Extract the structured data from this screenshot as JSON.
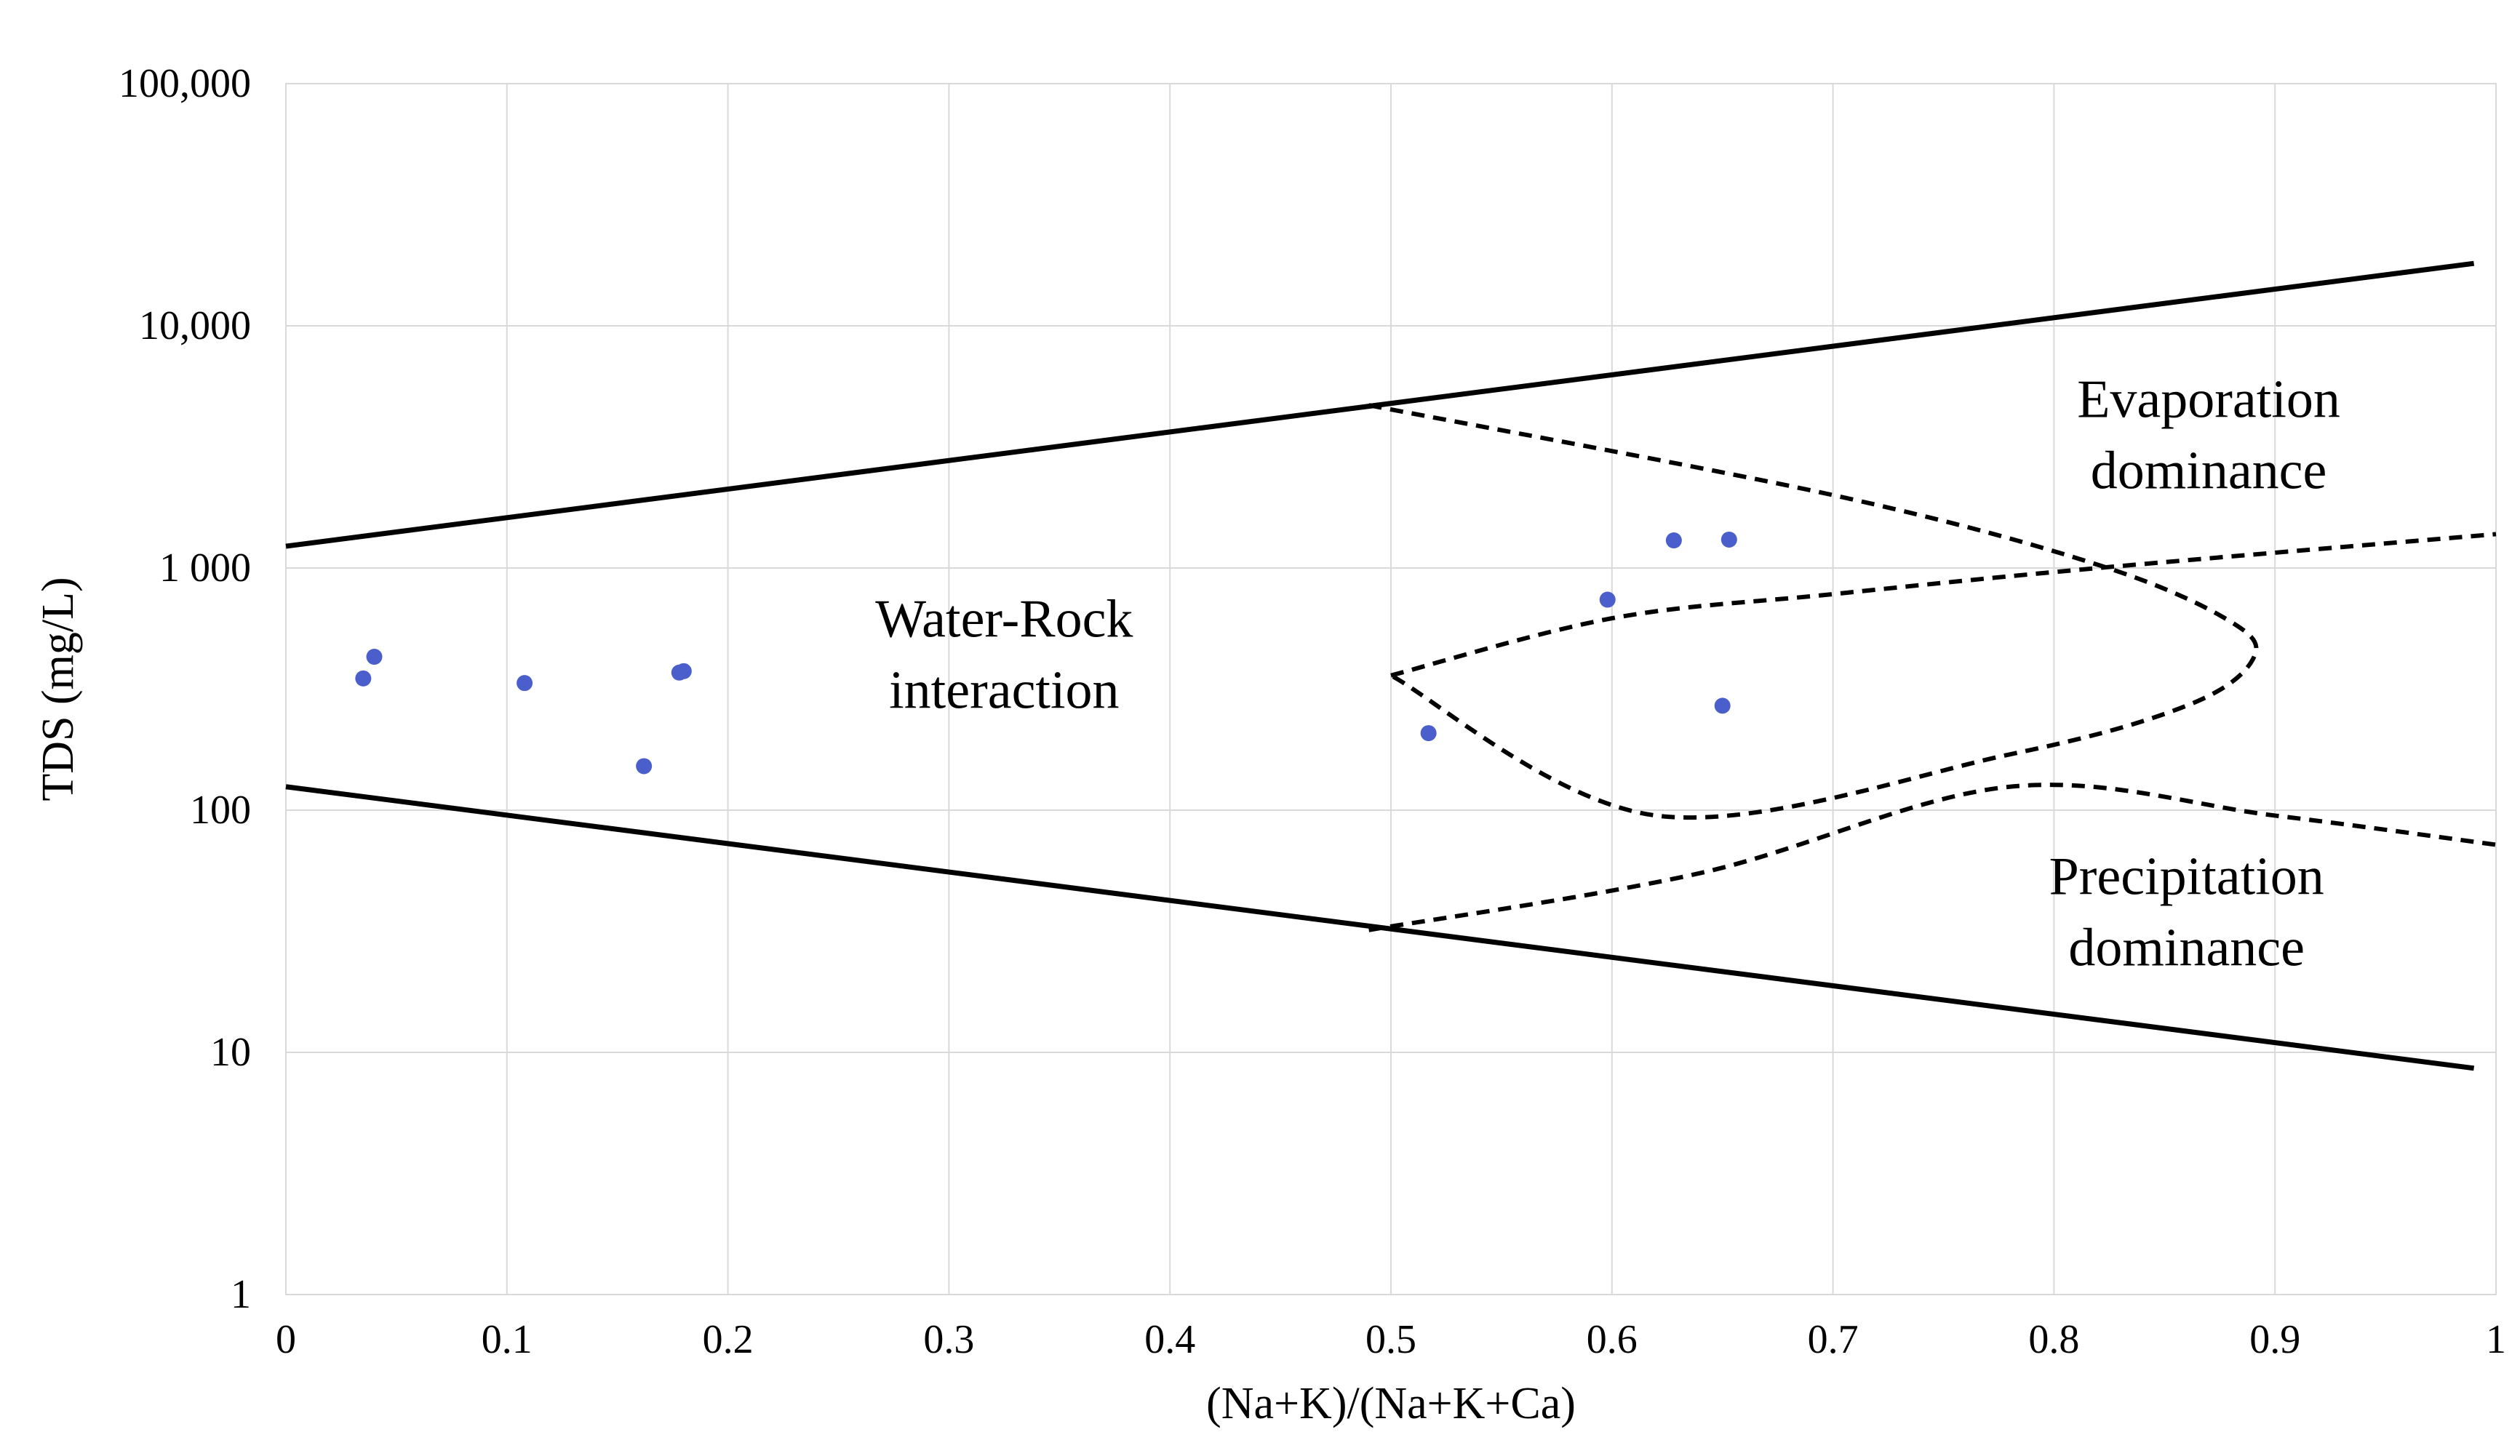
{
  "chart_data": {
    "type": "scatter",
    "title": "",
    "xlabel": "(Na+K)/(Na+K+Ca)",
    "ylabel": "TDS (mg/L)",
    "xlim": [
      0,
      1
    ],
    "ylim": [
      1,
      100000
    ],
    "yscale": "log",
    "grid": true,
    "x_tick_labels": [
      "0",
      "0.1",
      "0.2",
      "0.3",
      "0.4",
      "0.5",
      "0.6",
      "0.7",
      "0.8",
      "0.9",
      "1"
    ],
    "y_tick_labels": [
      "1",
      "10",
      "100",
      "1 000",
      "10,000",
      "100,000"
    ],
    "point_color": "#4a5fcc",
    "series": [
      {
        "name": "Samples",
        "x": [
          0.035,
          0.04,
          0.108,
          0.162,
          0.178,
          0.18,
          0.517,
          0.598,
          0.628,
          0.653,
          0.65
        ],
        "y": [
          350,
          430,
          335,
          152,
          370,
          375,
          208,
          740,
          1300,
          1310,
          270
        ]
      }
    ],
    "boundary_lines": [
      {
        "name": "upper-boundary",
        "style": "solid",
        "x": [
          0,
          0.99
        ],
        "y": [
          1230,
          18100
        ]
      },
      {
        "name": "lower-boundary",
        "style": "solid",
        "x": [
          0,
          0.99
        ],
        "y": [
          125,
          8.6
        ]
      },
      {
        "name": "dashed-upper-branch",
        "style": "dashed",
        "x": [
          0.49,
          0.7,
          0.82,
          0.88,
          0.89,
          0.86,
          0.78,
          0.62,
          0.5
        ],
        "y": [
          4700,
          2000,
          1030,
          600,
          420,
          270,
          170,
          95,
          360
        ]
      },
      {
        "name": "dashed-lower-branch",
        "style": "dashed",
        "x": [
          0.49,
          0.64,
          0.78,
          0.9,
          1.0
        ],
        "y": [
          32,
          55,
          125,
          95,
          72
        ]
      },
      {
        "name": "dashed-right-branch",
        "style": "dashed",
        "x": [
          0.5,
          0.6,
          0.7,
          0.82,
          1.0
        ],
        "y": [
          360,
          620,
          780,
          1000,
          1380
        ]
      }
    ],
    "annotations": [
      {
        "lines": [
          "Water-Rock",
          "interaction"
        ],
        "x": 0.325,
        "y": 520
      },
      {
        "lines": [
          "Evaporation",
          "dominance"
        ],
        "x": 0.87,
        "y": 4200
      },
      {
        "lines": [
          "Precipitation",
          "dominance"
        ],
        "x": 0.86,
        "y": 45
      }
    ]
  }
}
